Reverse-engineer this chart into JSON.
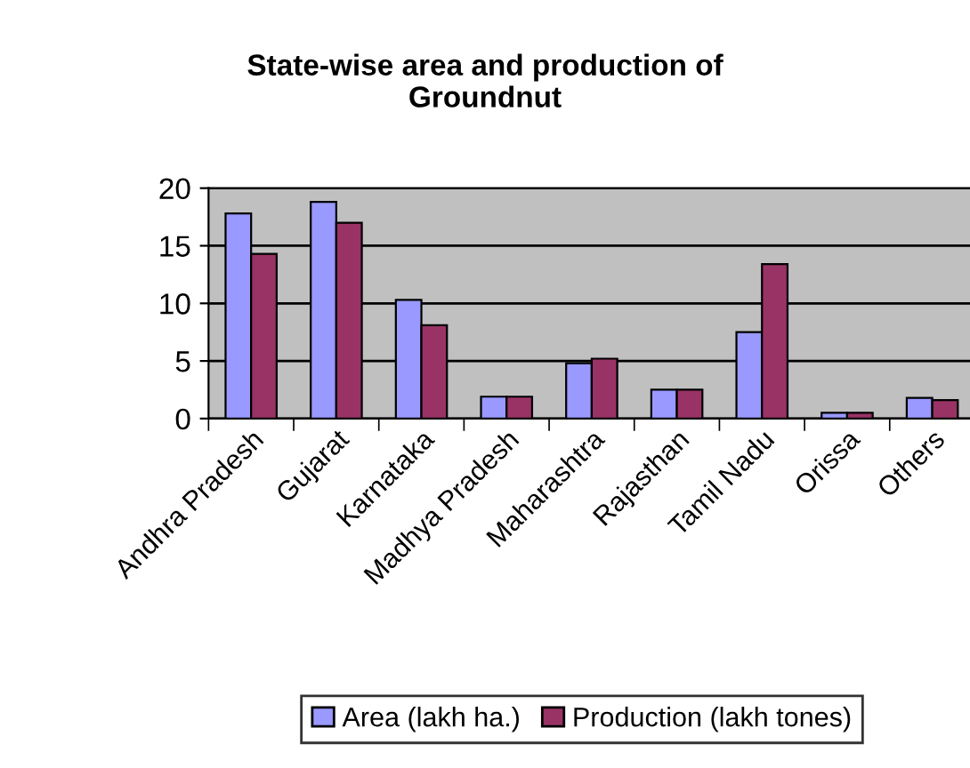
{
  "chart_data": {
    "type": "bar",
    "title": "State-wise area and production of\nGroundnut",
    "categories": [
      "Andhra Pradesh",
      "Gujarat",
      "Karnataka",
      "Madhya Pradesh",
      "Maharashtra",
      "Rajasthan",
      "Tamil Nadu",
      "Orissa",
      "Others"
    ],
    "series": [
      {
        "name": "Area (lakh ha.)",
        "color": "#9999ff",
        "values": [
          17.8,
          18.8,
          10.3,
          1.9,
          4.8,
          2.5,
          7.5,
          0.5,
          1.8
        ]
      },
      {
        "name": "Production (lakh tones)",
        "color": "#993366",
        "values": [
          14.3,
          17.0,
          8.1,
          1.9,
          5.2,
          2.5,
          13.4,
          0.5,
          1.6
        ]
      }
    ],
    "ylim": [
      0,
      20
    ],
    "yticks": [
      0,
      5,
      10,
      15,
      20
    ],
    "grid": "y",
    "legend": "bottom"
  }
}
